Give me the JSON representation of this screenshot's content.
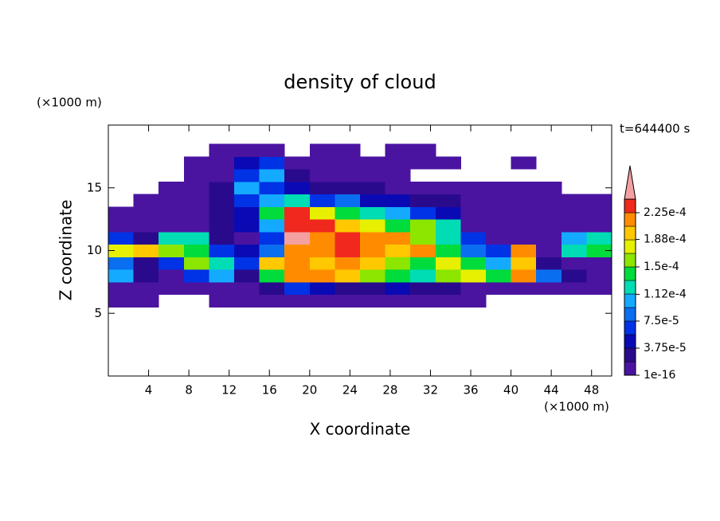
{
  "chart_data": {
    "type": "contour",
    "title": "density of cloud",
    "xlabel": "X coordinate",
    "ylabel": "Z coordinate",
    "x_unit": "(×1000 m)",
    "y_unit": "(×1000 m)",
    "annotation": "t=644400 s",
    "xlim": [
      0,
      50
    ],
    "ylim": [
      0,
      20
    ],
    "xticks": [
      4,
      8,
      12,
      16,
      20,
      24,
      28,
      32,
      36,
      40,
      44,
      48
    ],
    "yticks": [
      5,
      10,
      15
    ],
    "x": [
      1.25,
      3.75,
      6.25,
      8.75,
      11.25,
      13.75,
      16.25,
      18.75,
      21.25,
      23.75,
      26.25,
      28.75,
      31.25,
      33.75,
      36.25,
      38.75,
      41.25,
      43.75,
      46.25,
      48.75
    ],
    "y": [
      6,
      7,
      8,
      9,
      10,
      11,
      12,
      13,
      14,
      15,
      16,
      17,
      18
    ],
    "values": [
      [
        5e-06,
        5e-06,
        null,
        null,
        5e-06,
        5e-06,
        5e-06,
        5e-06,
        5e-06,
        5e-06,
        5e-06,
        5e-06,
        5e-06,
        5e-06,
        5e-06,
        null,
        null,
        null,
        null,
        null
      ],
      [
        5e-06,
        5e-06,
        5e-06,
        5e-06,
        5e-06,
        5e-06,
        2.5e-05,
        6.5e-05,
        4.5e-05,
        2.5e-05,
        2.5e-05,
        4.5e-05,
        2.5e-05,
        2.5e-05,
        5e-06,
        5e-06,
        5e-06,
        5e-06,
        5e-06,
        5e-06
      ],
      [
        0.000105,
        2.5e-05,
        5e-06,
        6.5e-05,
        0.000105,
        2.5e-05,
        0.00014,
        0.00021,
        0.00021,
        0.000195,
        0.00016,
        0.00014,
        0.00012,
        0.00016,
        0.000175,
        0.00014,
        0.00021,
        8.5e-05,
        2.5e-05,
        5e-06
      ],
      [
        8.5e-05,
        2.5e-05,
        6.5e-05,
        0.00016,
        0.00012,
        6.5e-05,
        0.000195,
        0.00021,
        0.000195,
        0.00021,
        0.000195,
        0.00016,
        0.00014,
        0.000175,
        0.00014,
        0.000105,
        0.000195,
        2.5e-05,
        5e-06,
        5e-06
      ],
      [
        0.000175,
        0.000195,
        0.00016,
        0.00014,
        6.5e-05,
        4.5e-05,
        8.5e-05,
        0.00021,
        0.00021,
        0.000235,
        0.00021,
        0.000195,
        0.00021,
        0.00014,
        8.5e-05,
        6.5e-05,
        0.00021,
        5e-06,
        0.00012,
        0.00014
      ],
      [
        6.5e-05,
        2.5e-05,
        0.00012,
        0.00012,
        2.5e-05,
        5e-06,
        6.5e-05,
        0.00026,
        0.00021,
        0.000235,
        0.00021,
        0.00021,
        0.00016,
        0.00012,
        6.5e-05,
        5e-06,
        5e-06,
        5e-06,
        0.000105,
        0.00012
      ],
      [
        5e-06,
        5e-06,
        5e-06,
        5e-06,
        2.5e-05,
        4.5e-05,
        0.000105,
        0.000235,
        0.000235,
        0.000195,
        0.000175,
        0.00014,
        0.00016,
        0.00012,
        5e-06,
        5e-06,
        5e-06,
        5e-06,
        5e-06,
        5e-06
      ],
      [
        5e-06,
        5e-06,
        5e-06,
        5e-06,
        2.5e-05,
        4.5e-05,
        0.00014,
        0.000235,
        0.000175,
        0.00014,
        0.00012,
        0.000105,
        6.5e-05,
        4.5e-05,
        5e-06,
        5e-06,
        5e-06,
        5e-06,
        5e-06,
        5e-06
      ],
      [
        null,
        5e-06,
        5e-06,
        5e-06,
        2.5e-05,
        6.5e-05,
        0.000105,
        0.00012,
        6.5e-05,
        8.5e-05,
        4.5e-05,
        4.5e-05,
        2.5e-05,
        2.5e-05,
        5e-06,
        5e-06,
        5e-06,
        5e-06,
        5e-06,
        5e-06
      ],
      [
        null,
        null,
        5e-06,
        5e-06,
        2.5e-05,
        0.000105,
        6.5e-05,
        4.5e-05,
        2.5e-05,
        2.5e-05,
        2.5e-05,
        5e-06,
        5e-06,
        5e-06,
        5e-06,
        5e-06,
        5e-06,
        5e-06,
        null,
        null
      ],
      [
        null,
        null,
        null,
        5e-06,
        5e-06,
        6.5e-05,
        0.000105,
        2.5e-05,
        5e-06,
        5e-06,
        5e-06,
        5e-06,
        null,
        null,
        null,
        null,
        null,
        null,
        null,
        null
      ],
      [
        null,
        null,
        null,
        5e-06,
        5e-06,
        4.5e-05,
        6.5e-05,
        5e-06,
        5e-06,
        5e-06,
        5e-06,
        5e-06,
        5e-06,
        5e-06,
        null,
        null,
        5e-06,
        null,
        null,
        null
      ],
      [
        null,
        null,
        null,
        null,
        5e-06,
        5e-06,
        5e-06,
        null,
        5e-06,
        5e-06,
        null,
        5e-06,
        5e-06,
        null,
        null,
        null,
        null,
        null,
        null,
        null
      ]
    ],
    "colorbar": {
      "levels": [
        0,
        1.875e-05,
        3.75e-05,
        5.625e-05,
        7.5e-05,
        9.375e-05,
        0.0001125,
        0.00013125,
        0.00015,
        0.00016875,
        0.0001875,
        0.00020625,
        0.000225,
        0.00024375
      ],
      "colors": [
        "#4a14a0",
        "#2a0a8c",
        "#0a0ab4",
        "#0032e6",
        "#0a6ef0",
        "#14aaff",
        "#00dcb4",
        "#00dc3c",
        "#8ce600",
        "#e6f000",
        "#ffc800",
        "#ff8c00",
        "#f0281e"
      ],
      "over_color": "#f5a0a0",
      "ticks": [
        {
          "value": 1e-16,
          "label": "1e-16"
        },
        {
          "value": 3.75e-05,
          "label": "3.75e-5"
        },
        {
          "value": 7.5e-05,
          "label": "7.5e-5"
        },
        {
          "value": 0.000112,
          "label": "1.12e-4"
        },
        {
          "value": 0.00015,
          "label": "1.5e-4"
        },
        {
          "value": 0.000188,
          "label": "1.88e-4"
        },
        {
          "value": 0.000225,
          "label": "2.25e-4"
        }
      ]
    }
  }
}
